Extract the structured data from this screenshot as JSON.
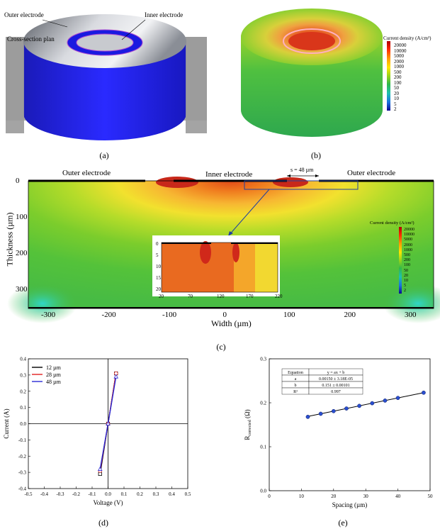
{
  "panel_a": {
    "caption": "(a)",
    "labels": {
      "outer_electrode": "Outer electrode",
      "inner_electrode": "Inner electrode",
      "cross_section": "Cross-section plan"
    }
  },
  "panel_b": {
    "caption": "(b)",
    "legend_title": "Current density (A/cm²)",
    "legend_ticks": [
      "20000",
      "10000",
      "5000",
      "2000",
      "1000",
      "500",
      "200",
      "100",
      "50",
      "20",
      "10",
      "5",
      "2"
    ]
  },
  "panel_c": {
    "caption": "(c)",
    "labels": {
      "outer_left": "Outer electrode",
      "inner": "Inner electrode",
      "outer_right": "Outer electrode",
      "spacing": "s = 48 µm"
    },
    "xlabel": "Width (µm)",
    "ylabel": "Thickness (µm)",
    "x_ticks": [
      "-300",
      "-200",
      "-100",
      "0",
      "100",
      "200",
      "300"
    ],
    "y_ticks": [
      "0",
      "100",
      "200",
      "300"
    ],
    "legend_title": "Current density (A/cm²)",
    "legend_ticks": [
      "20000",
      "10000",
      "5000",
      "2000",
      "1000",
      "500",
      "200",
      "100",
      "50",
      "20",
      "10",
      "5",
      "2"
    ],
    "inset_x_ticks": [
      "20",
      "70",
      "120",
      "170",
      "220"
    ],
    "inset_y_ticks": [
      "0",
      "5",
      "10",
      "15",
      "20"
    ]
  },
  "chart_data": [
    {
      "type": "line",
      "panel": "(d)",
      "xlabel": "Voltage (V)",
      "ylabel": "Current (A)",
      "xlim": [
        -0.5,
        0.5
      ],
      "ylim": [
        -0.4,
        0.4
      ],
      "x_ticks": [
        "-0.5",
        "-0.4",
        "-0.3",
        "-0.2",
        "-0.1",
        "0.0",
        "0.1",
        "0.2",
        "0.3",
        "0.4",
        "0.5"
      ],
      "y_ticks": [
        "-0.4",
        "-0.3",
        "-0.2",
        "-0.1",
        "0.0",
        "0.1",
        "0.2",
        "0.3",
        "0.4"
      ],
      "legend_placement": "top-left",
      "series": [
        {
          "name": "12 µm",
          "color": "#000000",
          "marker": "square",
          "x": [
            -0.05,
            0.0,
            0.05
          ],
          "y": [
            -0.31,
            0.0,
            0.31
          ]
        },
        {
          "name": "28 µm",
          "color": "#e02020",
          "marker": "circle",
          "x": [
            -0.05,
            0.0,
            0.05
          ],
          "y": [
            -0.29,
            0.0,
            0.31
          ]
        },
        {
          "name": "48 µm",
          "color": "#2b2bd6",
          "marker": "triangle",
          "x": [
            -0.05,
            0.0,
            0.05
          ],
          "y": [
            -0.28,
            0.0,
            0.29
          ]
        }
      ]
    },
    {
      "type": "scatter",
      "panel": "(e)",
      "xlabel": "Spacing (µm)",
      "ylabel": "R",
      "ylabel_sub": "corrected",
      "ylabel_unit": " (Ω)",
      "xlim": [
        0,
        50
      ],
      "ylim": [
        0.0,
        0.3
      ],
      "x_ticks": [
        "0",
        "10",
        "20",
        "30",
        "40",
        "50"
      ],
      "y_ticks": [
        "0.0",
        "0.1",
        "0.2",
        "0.3"
      ],
      "points": {
        "x": [
          12,
          16,
          20,
          24,
          28,
          32,
          36,
          40,
          48
        ],
        "y": [
          0.168,
          0.175,
          0.181,
          0.187,
          0.193,
          0.199,
          0.205,
          0.211,
          0.223
        ]
      },
      "fit": {
        "x": [
          12,
          48
        ],
        "y": [
          0.169,
          0.223
        ]
      },
      "fit_table": {
        "rows": [
          [
            "Equation",
            "y = ax + b"
          ],
          [
            "a",
            "0.00150 ± 3.18E-05"
          ],
          [
            "b",
            "0.151 ± 0.00101"
          ],
          [
            "R²",
            "0.997"
          ]
        ]
      }
    }
  ],
  "captions": {
    "d": "(d)",
    "e": "(e)"
  }
}
